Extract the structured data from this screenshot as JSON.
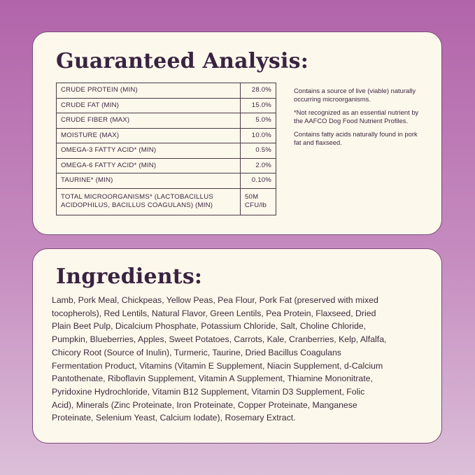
{
  "analysis": {
    "title": "Guaranteed Analysis:",
    "rows": [
      {
        "label": "CRUDE PROTEIN (MIN)",
        "value": "28.0%"
      },
      {
        "label": "CRUDE FAT (MIN)",
        "value": "15.0%"
      },
      {
        "label": "CRUDE FIBER (MAX)",
        "value": "5.0%"
      },
      {
        "label": "MOISTURE (MAX)",
        "value": "10.0%"
      },
      {
        "label": "OMEGA-3 FATTY ACID* (MIN)",
        "value": "0.5%"
      },
      {
        "label": "OMEGA-6 FATTY ACID* (MIN)",
        "value": "2.0%"
      },
      {
        "label": "TAURINE* (MIN)",
        "value": "0.10%"
      },
      {
        "label": "TOTAL MICROORGANISMS* (LACTOBACILLUS ACIDOPHILUS, BACILLUS COAGULANS) (MIN)",
        "value": "50M CFU/lb"
      }
    ],
    "notes": [
      "Contains a source of live (viable) naturally occurring microorganisms.",
      "*Not recognized as an essential nutrient by the AAFCO Dog Food Nutrient Profiles.",
      "Contains fatty acids naturally found in pork fat and flaxseed."
    ]
  },
  "ingredients": {
    "title": "Ingredients:",
    "lines": [
      "Lamb, Pork Meal, Chickpeas, Yellow Peas, Pea Flour, Pork Fat (preserved with mixed",
      "tocopherols), Red Lentils, Natural Flavor, Green Lentils, Pea Protein, Flaxseed, Dried",
      "Plain Beet Pulp, Dicalcium Phosphate, Potassium Chloride, Salt, Choline Chloride,",
      "Pumpkin, Blueberries, Apples, Sweet Potatoes, Carrots, Kale, Cranberries, Kelp, Alfalfa,",
      "Chicory Root (Source of Inulin), Turmeric, Taurine, Dried Bacillus Coagulans",
      "Fermentation Product, Vitamins (Vitamin E Supplement, Niacin Supplement, d-Calcium",
      "Pantothenate, Riboflavin Supplement, Vitamin A Supplement, Thiamine Mononitrate,",
      "Pyridoxine Hydrochloride, Vitamin B12 Supplement, Vitamin D3 Supplement, Folic",
      "Acid), Minerals (Zinc Proteinate, Iron Proteinate, Copper Proteinate, Manganese",
      "Proteinate, Selenium Yeast, Calcium Iodate), Rosemary Extract."
    ]
  }
}
